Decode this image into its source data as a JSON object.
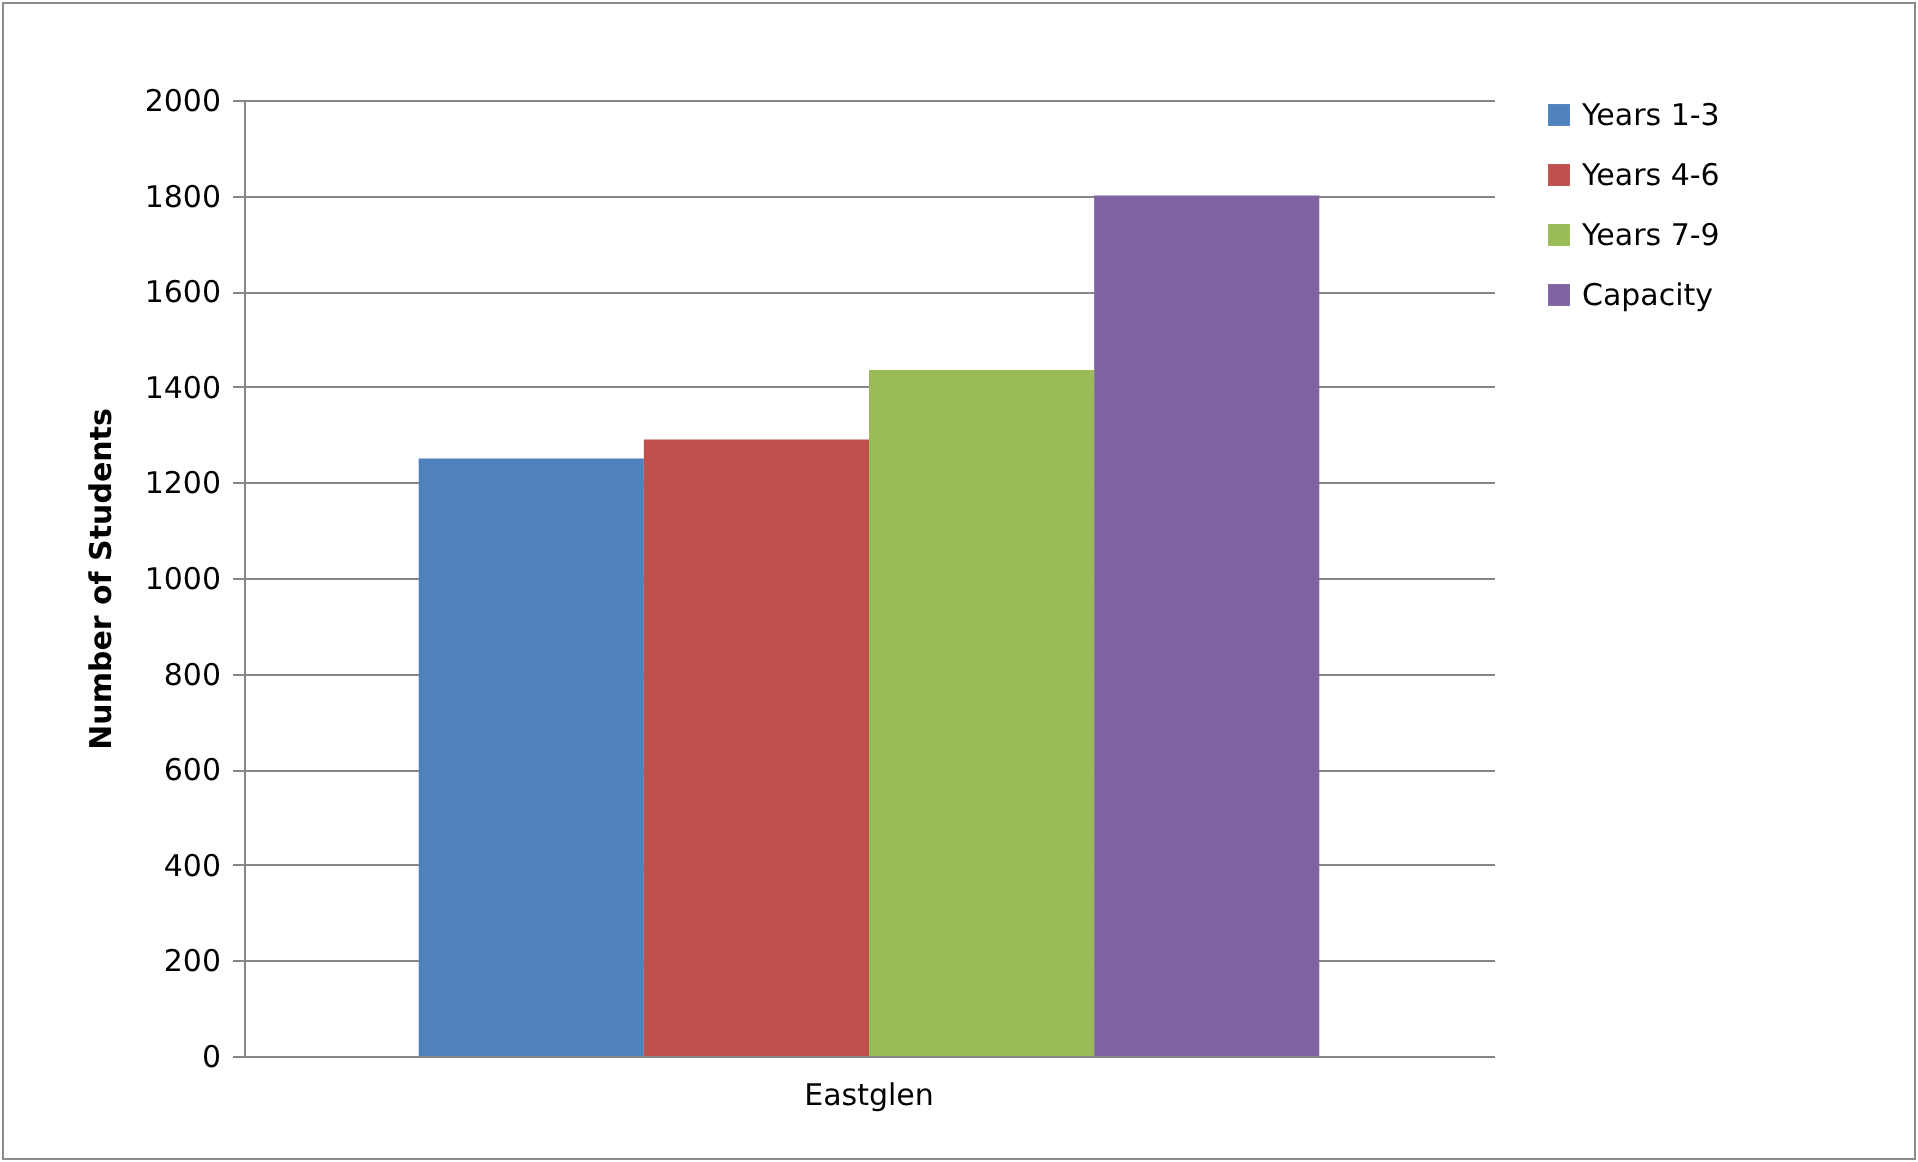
{
  "chart_data": {
    "type": "bar",
    "ylabel": "Number of Students",
    "categories": [
      "Eastglen"
    ],
    "series": [
      {
        "name": "Years 1-3",
        "color": "#4f81bd",
        "values": [
          1250
        ]
      },
      {
        "name": "Years 4-6",
        "color": "#c0504d",
        "values": [
          1290
        ]
      },
      {
        "name": "Years 7-9",
        "color": "#9bbb59",
        "values": [
          1435
        ]
      },
      {
        "name": "Capacity",
        "color": "#8064a2",
        "values": [
          1800
        ]
      }
    ],
    "ylim": [
      0,
      2000
    ],
    "yticks": [
      0,
      200,
      400,
      600,
      800,
      1000,
      1200,
      1400,
      1600,
      1800,
      2000
    ],
    "grid": "y",
    "legend": "right"
  }
}
